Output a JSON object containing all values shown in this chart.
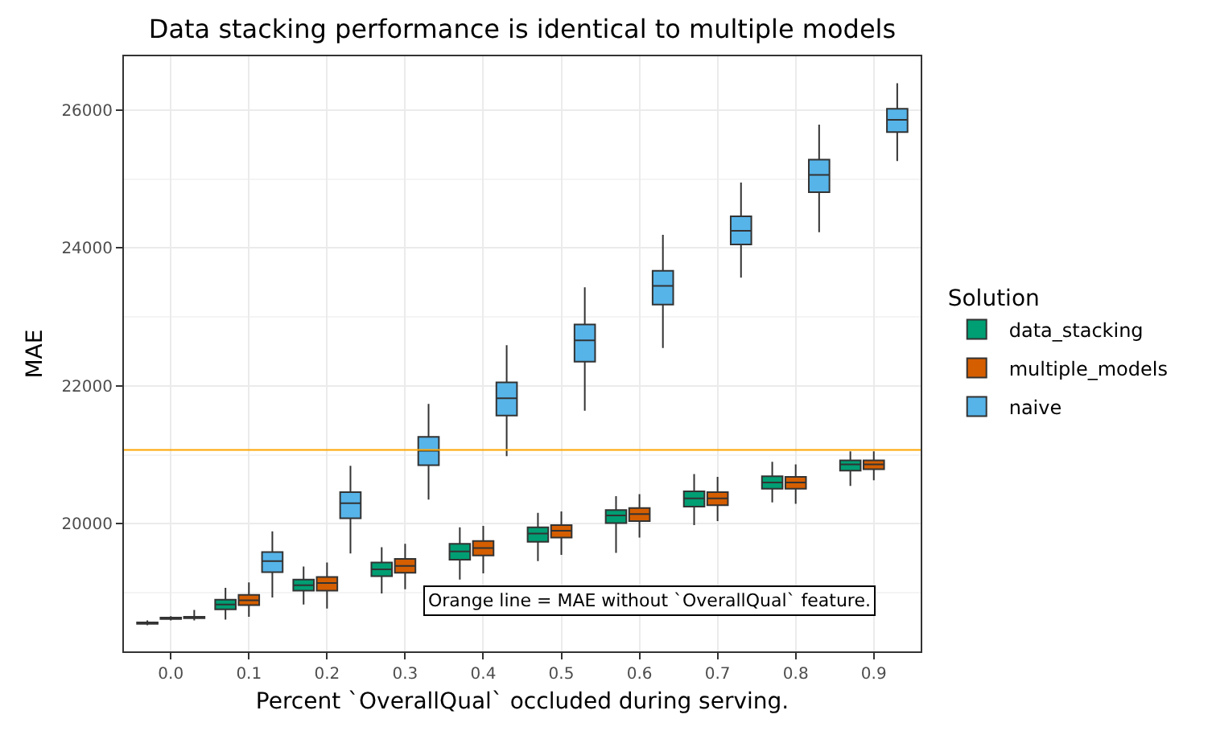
{
  "chart_data": {
    "type": "box",
    "title": "Data stacking performance is identical to multiple models",
    "xlabel": "Percent `OverallQual` occluded during serving.",
    "ylabel": "MAE",
    "legend_title": "Solution",
    "categories": [
      "0.0",
      "0.1",
      "0.2",
      "0.3",
      "0.4",
      "0.5",
      "0.6",
      "0.7",
      "0.8",
      "0.9"
    ],
    "series": [
      {
        "name": "data_stacking",
        "color": "#009e73",
        "boxes": [
          {
            "low": 18530,
            "q1": 18550,
            "median": 18560,
            "q3": 18570,
            "high": 18600
          },
          {
            "low": 18610,
            "q1": 18760,
            "median": 18830,
            "q3": 18900,
            "high": 19070
          },
          {
            "low": 18830,
            "q1": 19030,
            "median": 19110,
            "q3": 19190,
            "high": 19380
          },
          {
            "low": 18990,
            "q1": 19240,
            "median": 19340,
            "q3": 19440,
            "high": 19660
          },
          {
            "low": 19190,
            "q1": 19480,
            "median": 19600,
            "q3": 19710,
            "high": 19950
          },
          {
            "low": 19460,
            "q1": 19740,
            "median": 19860,
            "q3": 19950,
            "high": 20160
          },
          {
            "low": 19580,
            "q1": 20010,
            "median": 20120,
            "q3": 20200,
            "high": 20400
          },
          {
            "low": 19980,
            "q1": 20250,
            "median": 20370,
            "q3": 20470,
            "high": 20720
          },
          {
            "low": 20310,
            "q1": 20510,
            "median": 20600,
            "q3": 20690,
            "high": 20900
          },
          {
            "low": 20550,
            "q1": 20770,
            "median": 20860,
            "q3": 20920,
            "high": 21050
          }
        ]
      },
      {
        "name": "multiple_models",
        "color": "#d55e00",
        "boxes": [
          {
            "low": 18600,
            "q1": 18620,
            "median": 18630,
            "q3": 18640,
            "high": 18660
          },
          {
            "low": 18650,
            "q1": 18820,
            "median": 18890,
            "q3": 18970,
            "high": 19150
          },
          {
            "low": 18770,
            "q1": 19030,
            "median": 19140,
            "q3": 19230,
            "high": 19440
          },
          {
            "low": 19050,
            "q1": 19290,
            "median": 19390,
            "q3": 19490,
            "high": 19710
          },
          {
            "low": 19280,
            "q1": 19540,
            "median": 19650,
            "q3": 19750,
            "high": 19970
          },
          {
            "low": 19550,
            "q1": 19800,
            "median": 19900,
            "q3": 19980,
            "high": 20180
          },
          {
            "low": 19800,
            "q1": 20040,
            "median": 20140,
            "q3": 20230,
            "high": 20430
          },
          {
            "low": 20040,
            "q1": 20270,
            "median": 20370,
            "q3": 20460,
            "high": 20680
          },
          {
            "low": 20290,
            "q1": 20510,
            "median": 20600,
            "q3": 20680,
            "high": 20860
          },
          {
            "low": 20630,
            "q1": 20790,
            "median": 20860,
            "q3": 20920,
            "high": 21050
          }
        ]
      },
      {
        "name": "naive",
        "color": "#56b4e9",
        "boxes": [
          {
            "low": 18600,
            "q1": 18630,
            "median": 18640,
            "q3": 18650,
            "high": 18750
          },
          {
            "low": 18930,
            "q1": 19300,
            "median": 19460,
            "q3": 19590,
            "high": 19890
          },
          {
            "low": 19570,
            "q1": 20080,
            "median": 20300,
            "q3": 20460,
            "high": 20840
          },
          {
            "low": 20350,
            "q1": 20850,
            "median": 21060,
            "q3": 21260,
            "high": 21740
          },
          {
            "low": 20980,
            "q1": 21570,
            "median": 21820,
            "q3": 22050,
            "high": 22590
          },
          {
            "low": 21640,
            "q1": 22350,
            "median": 22660,
            "q3": 22890,
            "high": 23430
          },
          {
            "low": 22550,
            "q1": 23180,
            "median": 23450,
            "q3": 23670,
            "high": 24190
          },
          {
            "low": 23570,
            "q1": 24050,
            "median": 24250,
            "q3": 24460,
            "high": 24950
          },
          {
            "low": 24230,
            "q1": 24810,
            "median": 25060,
            "q3": 25280,
            "high": 25790
          },
          {
            "low": 25260,
            "q1": 25680,
            "median": 25860,
            "q3": 26020,
            "high": 26390
          }
        ]
      }
    ],
    "ylim": [
      18150,
      26780
    ],
    "yticks": [
      20000,
      22000,
      24000,
      26000
    ],
    "ref_lines": [
      {
        "axis": "y",
        "value": 21070,
        "color": "#ffa500"
      }
    ],
    "annotations": [
      "Orange line = MAE without `OverallQual` feature."
    ],
    "grid": true,
    "legend": "right"
  }
}
